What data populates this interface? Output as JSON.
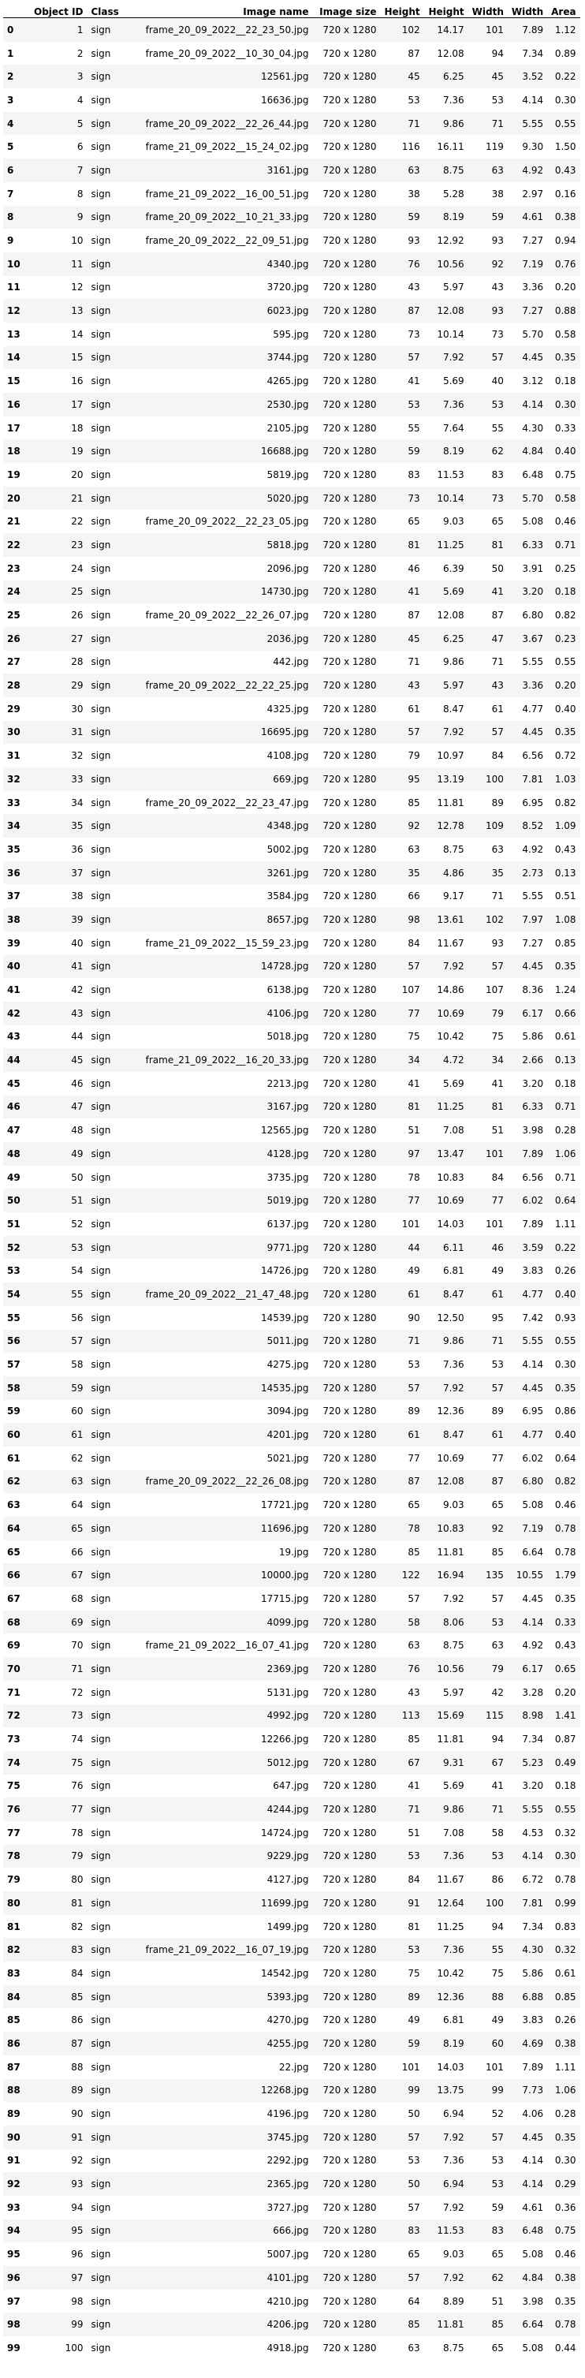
{
  "table": {
    "headers": [
      "",
      "Object ID",
      "Class",
      "Image name",
      "Image size",
      "Height",
      "Height",
      "Width",
      "Width",
      "Area"
    ],
    "rows": [
      [
        "0",
        "1",
        "sign",
        "frame_20_09_2022__22_23_50.jpg",
        "720 x 1280",
        "102",
        "14.17",
        "101",
        "7.89",
        "1.12"
      ],
      [
        "1",
        "2",
        "sign",
        "frame_20_09_2022__10_30_04.jpg",
        "720 x 1280",
        "87",
        "12.08",
        "94",
        "7.34",
        "0.89"
      ],
      [
        "2",
        "3",
        "sign",
        "12561.jpg",
        "720 x 1280",
        "45",
        "6.25",
        "45",
        "3.52",
        "0.22"
      ],
      [
        "3",
        "4",
        "sign",
        "16636.jpg",
        "720 x 1280",
        "53",
        "7.36",
        "53",
        "4.14",
        "0.30"
      ],
      [
        "4",
        "5",
        "sign",
        "frame_20_09_2022__22_26_44.jpg",
        "720 x 1280",
        "71",
        "9.86",
        "71",
        "5.55",
        "0.55"
      ],
      [
        "5",
        "6",
        "sign",
        "frame_21_09_2022__15_24_02.jpg",
        "720 x 1280",
        "116",
        "16.11",
        "119",
        "9.30",
        "1.50"
      ],
      [
        "6",
        "7",
        "sign",
        "3161.jpg",
        "720 x 1280",
        "63",
        "8.75",
        "63",
        "4.92",
        "0.43"
      ],
      [
        "7",
        "8",
        "sign",
        "frame_21_09_2022__16_00_51.jpg",
        "720 x 1280",
        "38",
        "5.28",
        "38",
        "2.97",
        "0.16"
      ],
      [
        "8",
        "9",
        "sign",
        "frame_20_09_2022__10_21_33.jpg",
        "720 x 1280",
        "59",
        "8.19",
        "59",
        "4.61",
        "0.38"
      ],
      [
        "9",
        "10",
        "sign",
        "frame_20_09_2022__22_09_51.jpg",
        "720 x 1280",
        "93",
        "12.92",
        "93",
        "7.27",
        "0.94"
      ],
      [
        "10",
        "11",
        "sign",
        "4340.jpg",
        "720 x 1280",
        "76",
        "10.56",
        "92",
        "7.19",
        "0.76"
      ],
      [
        "11",
        "12",
        "sign",
        "3720.jpg",
        "720 x 1280",
        "43",
        "5.97",
        "43",
        "3.36",
        "0.20"
      ],
      [
        "12",
        "13",
        "sign",
        "6023.jpg",
        "720 x 1280",
        "87",
        "12.08",
        "93",
        "7.27",
        "0.88"
      ],
      [
        "13",
        "14",
        "sign",
        "595.jpg",
        "720 x 1280",
        "73",
        "10.14",
        "73",
        "5.70",
        "0.58"
      ],
      [
        "14",
        "15",
        "sign",
        "3744.jpg",
        "720 x 1280",
        "57",
        "7.92",
        "57",
        "4.45",
        "0.35"
      ],
      [
        "15",
        "16",
        "sign",
        "4265.jpg",
        "720 x 1280",
        "41",
        "5.69",
        "40",
        "3.12",
        "0.18"
      ],
      [
        "16",
        "17",
        "sign",
        "2530.jpg",
        "720 x 1280",
        "53",
        "7.36",
        "53",
        "4.14",
        "0.30"
      ],
      [
        "17",
        "18",
        "sign",
        "2105.jpg",
        "720 x 1280",
        "55",
        "7.64",
        "55",
        "4.30",
        "0.33"
      ],
      [
        "18",
        "19",
        "sign",
        "16688.jpg",
        "720 x 1280",
        "59",
        "8.19",
        "62",
        "4.84",
        "0.40"
      ],
      [
        "19",
        "20",
        "sign",
        "5819.jpg",
        "720 x 1280",
        "83",
        "11.53",
        "83",
        "6.48",
        "0.75"
      ],
      [
        "20",
        "21",
        "sign",
        "5020.jpg",
        "720 x 1280",
        "73",
        "10.14",
        "73",
        "5.70",
        "0.58"
      ],
      [
        "21",
        "22",
        "sign",
        "frame_20_09_2022__22_23_05.jpg",
        "720 x 1280",
        "65",
        "9.03",
        "65",
        "5.08",
        "0.46"
      ],
      [
        "22",
        "23",
        "sign",
        "5818.jpg",
        "720 x 1280",
        "81",
        "11.25",
        "81",
        "6.33",
        "0.71"
      ],
      [
        "23",
        "24",
        "sign",
        "2096.jpg",
        "720 x 1280",
        "46",
        "6.39",
        "50",
        "3.91",
        "0.25"
      ],
      [
        "24",
        "25",
        "sign",
        "14730.jpg",
        "720 x 1280",
        "41",
        "5.69",
        "41",
        "3.20",
        "0.18"
      ],
      [
        "25",
        "26",
        "sign",
        "frame_20_09_2022__22_26_07.jpg",
        "720 x 1280",
        "87",
        "12.08",
        "87",
        "6.80",
        "0.82"
      ],
      [
        "26",
        "27",
        "sign",
        "2036.jpg",
        "720 x 1280",
        "45",
        "6.25",
        "47",
        "3.67",
        "0.23"
      ],
      [
        "27",
        "28",
        "sign",
        "442.jpg",
        "720 x 1280",
        "71",
        "9.86",
        "71",
        "5.55",
        "0.55"
      ],
      [
        "28",
        "29",
        "sign",
        "frame_20_09_2022__22_22_25.jpg",
        "720 x 1280",
        "43",
        "5.97",
        "43",
        "3.36",
        "0.20"
      ],
      [
        "29",
        "30",
        "sign",
        "4325.jpg",
        "720 x 1280",
        "61",
        "8.47",
        "61",
        "4.77",
        "0.40"
      ],
      [
        "30",
        "31",
        "sign",
        "16695.jpg",
        "720 x 1280",
        "57",
        "7.92",
        "57",
        "4.45",
        "0.35"
      ],
      [
        "31",
        "32",
        "sign",
        "4108.jpg",
        "720 x 1280",
        "79",
        "10.97",
        "84",
        "6.56",
        "0.72"
      ],
      [
        "32",
        "33",
        "sign",
        "669.jpg",
        "720 x 1280",
        "95",
        "13.19",
        "100",
        "7.81",
        "1.03"
      ],
      [
        "33",
        "34",
        "sign",
        "frame_20_09_2022__22_23_47.jpg",
        "720 x 1280",
        "85",
        "11.81",
        "89",
        "6.95",
        "0.82"
      ],
      [
        "34",
        "35",
        "sign",
        "4348.jpg",
        "720 x 1280",
        "92",
        "12.78",
        "109",
        "8.52",
        "1.09"
      ],
      [
        "35",
        "36",
        "sign",
        "5002.jpg",
        "720 x 1280",
        "63",
        "8.75",
        "63",
        "4.92",
        "0.43"
      ],
      [
        "36",
        "37",
        "sign",
        "3261.jpg",
        "720 x 1280",
        "35",
        "4.86",
        "35",
        "2.73",
        "0.13"
      ],
      [
        "37",
        "38",
        "sign",
        "3584.jpg",
        "720 x 1280",
        "66",
        "9.17",
        "71",
        "5.55",
        "0.51"
      ],
      [
        "38",
        "39",
        "sign",
        "8657.jpg",
        "720 x 1280",
        "98",
        "13.61",
        "102",
        "7.97",
        "1.08"
      ],
      [
        "39",
        "40",
        "sign",
        "frame_21_09_2022__15_59_23.jpg",
        "720 x 1280",
        "84",
        "11.67",
        "93",
        "7.27",
        "0.85"
      ],
      [
        "40",
        "41",
        "sign",
        "14728.jpg",
        "720 x 1280",
        "57",
        "7.92",
        "57",
        "4.45",
        "0.35"
      ],
      [
        "41",
        "42",
        "sign",
        "6138.jpg",
        "720 x 1280",
        "107",
        "14.86",
        "107",
        "8.36",
        "1.24"
      ],
      [
        "42",
        "43",
        "sign",
        "4106.jpg",
        "720 x 1280",
        "77",
        "10.69",
        "79",
        "6.17",
        "0.66"
      ],
      [
        "43",
        "44",
        "sign",
        "5018.jpg",
        "720 x 1280",
        "75",
        "10.42",
        "75",
        "5.86",
        "0.61"
      ],
      [
        "44",
        "45",
        "sign",
        "frame_21_09_2022__16_20_33.jpg",
        "720 x 1280",
        "34",
        "4.72",
        "34",
        "2.66",
        "0.13"
      ],
      [
        "45",
        "46",
        "sign",
        "2213.jpg",
        "720 x 1280",
        "41",
        "5.69",
        "41",
        "3.20",
        "0.18"
      ],
      [
        "46",
        "47",
        "sign",
        "3167.jpg",
        "720 x 1280",
        "81",
        "11.25",
        "81",
        "6.33",
        "0.71"
      ],
      [
        "47",
        "48",
        "sign",
        "12565.jpg",
        "720 x 1280",
        "51",
        "7.08",
        "51",
        "3.98",
        "0.28"
      ],
      [
        "48",
        "49",
        "sign",
        "4128.jpg",
        "720 x 1280",
        "97",
        "13.47",
        "101",
        "7.89",
        "1.06"
      ],
      [
        "49",
        "50",
        "sign",
        "3735.jpg",
        "720 x 1280",
        "78",
        "10.83",
        "84",
        "6.56",
        "0.71"
      ],
      [
        "50",
        "51",
        "sign",
        "5019.jpg",
        "720 x 1280",
        "77",
        "10.69",
        "77",
        "6.02",
        "0.64"
      ],
      [
        "51",
        "52",
        "sign",
        "6137.jpg",
        "720 x 1280",
        "101",
        "14.03",
        "101",
        "7.89",
        "1.11"
      ],
      [
        "52",
        "53",
        "sign",
        "9771.jpg",
        "720 x 1280",
        "44",
        "6.11",
        "46",
        "3.59",
        "0.22"
      ],
      [
        "53",
        "54",
        "sign",
        "14726.jpg",
        "720 x 1280",
        "49",
        "6.81",
        "49",
        "3.83",
        "0.26"
      ],
      [
        "54",
        "55",
        "sign",
        "frame_20_09_2022__21_47_48.jpg",
        "720 x 1280",
        "61",
        "8.47",
        "61",
        "4.77",
        "0.40"
      ],
      [
        "55",
        "56",
        "sign",
        "14539.jpg",
        "720 x 1280",
        "90",
        "12.50",
        "95",
        "7.42",
        "0.93"
      ],
      [
        "56",
        "57",
        "sign",
        "5011.jpg",
        "720 x 1280",
        "71",
        "9.86",
        "71",
        "5.55",
        "0.55"
      ],
      [
        "57",
        "58",
        "sign",
        "4275.jpg",
        "720 x 1280",
        "53",
        "7.36",
        "53",
        "4.14",
        "0.30"
      ],
      [
        "58",
        "59",
        "sign",
        "14535.jpg",
        "720 x 1280",
        "57",
        "7.92",
        "57",
        "4.45",
        "0.35"
      ],
      [
        "59",
        "60",
        "sign",
        "3094.jpg",
        "720 x 1280",
        "89",
        "12.36",
        "89",
        "6.95",
        "0.86"
      ],
      [
        "60",
        "61",
        "sign",
        "4201.jpg",
        "720 x 1280",
        "61",
        "8.47",
        "61",
        "4.77",
        "0.40"
      ],
      [
        "61",
        "62",
        "sign",
        "5021.jpg",
        "720 x 1280",
        "77",
        "10.69",
        "77",
        "6.02",
        "0.64"
      ],
      [
        "62",
        "63",
        "sign",
        "frame_20_09_2022__22_26_08.jpg",
        "720 x 1280",
        "87",
        "12.08",
        "87",
        "6.80",
        "0.82"
      ],
      [
        "63",
        "64",
        "sign",
        "17721.jpg",
        "720 x 1280",
        "65",
        "9.03",
        "65",
        "5.08",
        "0.46"
      ],
      [
        "64",
        "65",
        "sign",
        "11696.jpg",
        "720 x 1280",
        "78",
        "10.83",
        "92",
        "7.19",
        "0.78"
      ],
      [
        "65",
        "66",
        "sign",
        "19.jpg",
        "720 x 1280",
        "85",
        "11.81",
        "85",
        "6.64",
        "0.78"
      ],
      [
        "66",
        "67",
        "sign",
        "10000.jpg",
        "720 x 1280",
        "122",
        "16.94",
        "135",
        "10.55",
        "1.79"
      ],
      [
        "67",
        "68",
        "sign",
        "17715.jpg",
        "720 x 1280",
        "57",
        "7.92",
        "57",
        "4.45",
        "0.35"
      ],
      [
        "68",
        "69",
        "sign",
        "4099.jpg",
        "720 x 1280",
        "58",
        "8.06",
        "53",
        "4.14",
        "0.33"
      ],
      [
        "69",
        "70",
        "sign",
        "frame_21_09_2022__16_07_41.jpg",
        "720 x 1280",
        "63",
        "8.75",
        "63",
        "4.92",
        "0.43"
      ],
      [
        "70",
        "71",
        "sign",
        "2369.jpg",
        "720 x 1280",
        "76",
        "10.56",
        "79",
        "6.17",
        "0.65"
      ],
      [
        "71",
        "72",
        "sign",
        "5131.jpg",
        "720 x 1280",
        "43",
        "5.97",
        "42",
        "3.28",
        "0.20"
      ],
      [
        "72",
        "73",
        "sign",
        "4992.jpg",
        "720 x 1280",
        "113",
        "15.69",
        "115",
        "8.98",
        "1.41"
      ],
      [
        "73",
        "74",
        "sign",
        "12266.jpg",
        "720 x 1280",
        "85",
        "11.81",
        "94",
        "7.34",
        "0.87"
      ],
      [
        "74",
        "75",
        "sign",
        "5012.jpg",
        "720 x 1280",
        "67",
        "9.31",
        "67",
        "5.23",
        "0.49"
      ],
      [
        "75",
        "76",
        "sign",
        "647.jpg",
        "720 x 1280",
        "41",
        "5.69",
        "41",
        "3.20",
        "0.18"
      ],
      [
        "76",
        "77",
        "sign",
        "4244.jpg",
        "720 x 1280",
        "71",
        "9.86",
        "71",
        "5.55",
        "0.55"
      ],
      [
        "77",
        "78",
        "sign",
        "14724.jpg",
        "720 x 1280",
        "51",
        "7.08",
        "58",
        "4.53",
        "0.32"
      ],
      [
        "78",
        "79",
        "sign",
        "9229.jpg",
        "720 x 1280",
        "53",
        "7.36",
        "53",
        "4.14",
        "0.30"
      ],
      [
        "79",
        "80",
        "sign",
        "4127.jpg",
        "720 x 1280",
        "84",
        "11.67",
        "86",
        "6.72",
        "0.78"
      ],
      [
        "80",
        "81",
        "sign",
        "11699.jpg",
        "720 x 1280",
        "91",
        "12.64",
        "100",
        "7.81",
        "0.99"
      ],
      [
        "81",
        "82",
        "sign",
        "1499.jpg",
        "720 x 1280",
        "81",
        "11.25",
        "94",
        "7.34",
        "0.83"
      ],
      [
        "82",
        "83",
        "sign",
        "frame_21_09_2022__16_07_19.jpg",
        "720 x 1280",
        "53",
        "7.36",
        "55",
        "4.30",
        "0.32"
      ],
      [
        "83",
        "84",
        "sign",
        "14542.jpg",
        "720 x 1280",
        "75",
        "10.42",
        "75",
        "5.86",
        "0.61"
      ],
      [
        "84",
        "85",
        "sign",
        "5393.jpg",
        "720 x 1280",
        "89",
        "12.36",
        "88",
        "6.88",
        "0.85"
      ],
      [
        "85",
        "86",
        "sign",
        "4270.jpg",
        "720 x 1280",
        "49",
        "6.81",
        "49",
        "3.83",
        "0.26"
      ],
      [
        "86",
        "87",
        "sign",
        "4255.jpg",
        "720 x 1280",
        "59",
        "8.19",
        "60",
        "4.69",
        "0.38"
      ],
      [
        "87",
        "88",
        "sign",
        "22.jpg",
        "720 x 1280",
        "101",
        "14.03",
        "101",
        "7.89",
        "1.11"
      ],
      [
        "88",
        "89",
        "sign",
        "12268.jpg",
        "720 x 1280",
        "99",
        "13.75",
        "99",
        "7.73",
        "1.06"
      ],
      [
        "89",
        "90",
        "sign",
        "4196.jpg",
        "720 x 1280",
        "50",
        "6.94",
        "52",
        "4.06",
        "0.28"
      ],
      [
        "90",
        "91",
        "sign",
        "3745.jpg",
        "720 x 1280",
        "57",
        "7.92",
        "57",
        "4.45",
        "0.35"
      ],
      [
        "91",
        "92",
        "sign",
        "2292.jpg",
        "720 x 1280",
        "53",
        "7.36",
        "53",
        "4.14",
        "0.30"
      ],
      [
        "92",
        "93",
        "sign",
        "2365.jpg",
        "720 x 1280",
        "50",
        "6.94",
        "53",
        "4.14",
        "0.29"
      ],
      [
        "93",
        "94",
        "sign",
        "3727.jpg",
        "720 x 1280",
        "57",
        "7.92",
        "59",
        "4.61",
        "0.36"
      ],
      [
        "94",
        "95",
        "sign",
        "666.jpg",
        "720 x 1280",
        "83",
        "11.53",
        "83",
        "6.48",
        "0.75"
      ],
      [
        "95",
        "96",
        "sign",
        "5007.jpg",
        "720 x 1280",
        "65",
        "9.03",
        "65",
        "5.08",
        "0.46"
      ],
      [
        "96",
        "97",
        "sign",
        "4101.jpg",
        "720 x 1280",
        "57",
        "7.92",
        "62",
        "4.84",
        "0.38"
      ],
      [
        "97",
        "98",
        "sign",
        "4210.jpg",
        "720 x 1280",
        "64",
        "8.89",
        "51",
        "3.98",
        "0.35"
      ],
      [
        "98",
        "99",
        "sign",
        "4206.jpg",
        "720 x 1280",
        "85",
        "11.81",
        "85",
        "6.64",
        "0.78"
      ],
      [
        "99",
        "100",
        "sign",
        "4918.jpg",
        "720 x 1280",
        "63",
        "8.75",
        "65",
        "5.08",
        "0.44"
      ]
    ]
  }
}
